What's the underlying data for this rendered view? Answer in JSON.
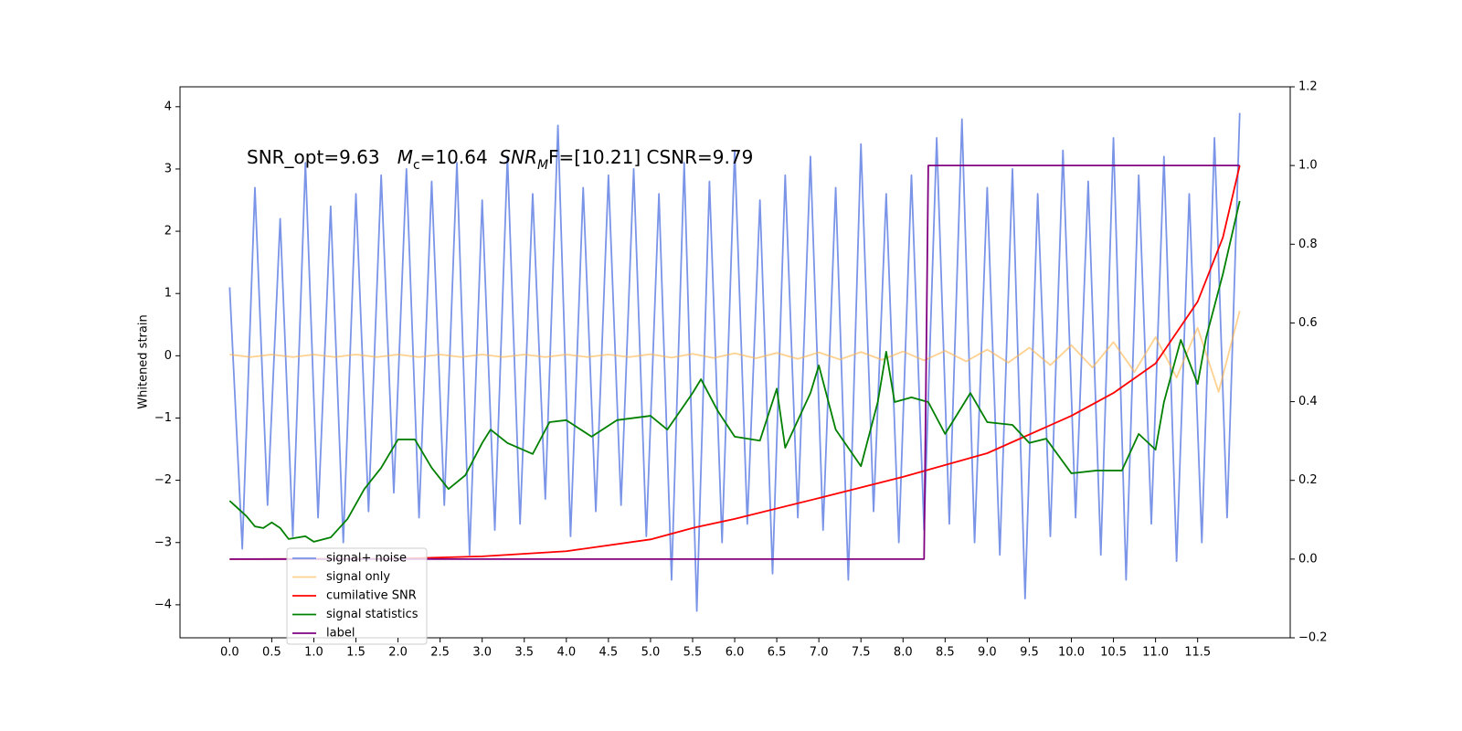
{
  "chart_data": {
    "type": "line",
    "ylabel": "Whitened strain",
    "annotation": [
      "SNR_opt=9.63   ",
      "M",
      "c",
      "=10.64  ",
      "SNR",
      "M",
      "F=[10.21] CSNR=9.79"
    ],
    "xlim": [
      -0.59,
      12.6
    ],
    "xticks": [
      {
        "value": 0,
        "label": "0.0"
      },
      0.5,
      {
        "value": 1,
        "label": "1.0"
      },
      1.5,
      {
        "value": 2,
        "label": "2.0"
      },
      2.5,
      {
        "value": 3,
        "label": "3.0"
      },
      3.5,
      {
        "value": 4,
        "label": "4.0"
      },
      4.5,
      {
        "value": 5,
        "label": "5.0"
      },
      5.5,
      {
        "value": 6,
        "label": "6.0"
      },
      6.5,
      {
        "value": 7,
        "label": "7.0"
      },
      7.5,
      {
        "value": 8,
        "label": "8.0"
      },
      8.5,
      {
        "value": 9,
        "label": "9.0"
      },
      9.5,
      {
        "value": 10,
        "label": "10.0"
      },
      10.5,
      {
        "value": 11,
        "label": "11.0"
      },
      11.5
    ],
    "ylim": [
      -4.53,
      4.32
    ],
    "yticks": [
      {
        "value": -4,
        "label": "−4"
      },
      {
        "value": -3,
        "label": "−3"
      },
      {
        "value": -2,
        "label": "−2"
      },
      {
        "value": -1,
        "label": "−1"
      },
      0,
      1,
      2,
      3,
      4
    ],
    "y2lim": [
      -0.2,
      1.2
    ],
    "y2ticks": [
      {
        "value": -0.2,
        "label": "−0.2"
      },
      {
        "value": 0,
        "label": "0.0"
      },
      0.2,
      0.4,
      0.6,
      0.8,
      {
        "value": 1,
        "label": "1.0"
      },
      1.2
    ],
    "series": [
      {
        "name": "signal+ noise",
        "color": "#7a94e8",
        "x": [
          0,
          0.15,
          0.3,
          0.45,
          0.6,
          0.75,
          0.9,
          1.05,
          1.2,
          1.35,
          1.5,
          1.65,
          1.8,
          1.95,
          2.1,
          2.25,
          2.4,
          2.55,
          2.7,
          2.85,
          3,
          3.15,
          3.3,
          3.45,
          3.6,
          3.75,
          3.9,
          4.05,
          4.2,
          4.35,
          4.5,
          4.65,
          4.8,
          4.95,
          5.1,
          5.25,
          5.4,
          5.55,
          5.7,
          5.85,
          6,
          6.15,
          6.3,
          6.45,
          6.6,
          6.75,
          6.9,
          7.05,
          7.2,
          7.35,
          7.5,
          7.65,
          7.8,
          7.95,
          8.1,
          8.25,
          8.4,
          8.55,
          8.7,
          8.85,
          9,
          9.15,
          9.3,
          9.45,
          9.6,
          9.75,
          9.9,
          10.05,
          10.2,
          10.35,
          10.5,
          10.65,
          10.8,
          10.95,
          11.1,
          11.25,
          11.4,
          11.55,
          11.7,
          11.85,
          12
        ],
        "values": [
          1.1,
          -3.1,
          2.7,
          -2.4,
          2.2,
          -2.9,
          3.1,
          -2.6,
          2.4,
          -3.0,
          2.6,
          -2.5,
          2.9,
          -2.2,
          3.0,
          -2.6,
          2.8,
          -2.4,
          3.1,
          -3.2,
          2.5,
          -2.8,
          3.2,
          -2.7,
          2.6,
          -2.3,
          3.7,
          -2.9,
          2.7,
          -2.5,
          2.9,
          -2.4,
          3.0,
          -2.9,
          2.6,
          -3.6,
          3.1,
          -4.1,
          2.8,
          -3.0,
          3.3,
          -2.7,
          2.5,
          -3.5,
          2.9,
          -2.6,
          3.2,
          -2.8,
          2.7,
          -3.6,
          3.4,
          -2.5,
          2.6,
          -3.0,
          2.9,
          -2.8,
          3.5,
          -2.7,
          3.8,
          -3.0,
          2.7,
          -3.2,
          3.0,
          -3.9,
          2.6,
          -2.9,
          3.3,
          -2.6,
          2.8,
          -3.2,
          3.5,
          -3.6,
          2.9,
          -2.7,
          3.2,
          -3.3,
          2.6,
          -3.0,
          3.5,
          -2.6,
          3.9
        ]
      },
      {
        "name": "signal only",
        "color": "#ffb347",
        "x": [
          0,
          0.25,
          0.5,
          0.75,
          1,
          1.25,
          1.5,
          1.75,
          2,
          2.25,
          2.5,
          2.75,
          3,
          3.25,
          3.5,
          3.75,
          4,
          4.25,
          4.5,
          4.75,
          5,
          5.25,
          5.5,
          5.75,
          6,
          6.25,
          6.5,
          6.75,
          7,
          7.25,
          7.5,
          7.75,
          8,
          8.25,
          8.5,
          8.75,
          9,
          9.25,
          9.5,
          9.75,
          10,
          10.25,
          10.5,
          10.75,
          11,
          11.25,
          11.5,
          11.75,
          12
        ],
        "values": [
          0.02,
          -0.02,
          0.02,
          -0.02,
          0.02,
          -0.02,
          0.02,
          -0.02,
          0.02,
          -0.02,
          0.02,
          -0.02,
          0.02,
          -0.02,
          0.02,
          -0.02,
          0.02,
          -0.02,
          0.02,
          -0.02,
          0.025,
          -0.03,
          0.03,
          -0.035,
          0.04,
          -0.04,
          0.045,
          -0.05,
          0.055,
          -0.06,
          0.06,
          -0.065,
          0.07,
          -0.075,
          0.08,
          -0.09,
          0.1,
          -0.11,
          0.13,
          -0.15,
          0.17,
          -0.19,
          0.22,
          -0.26,
          0.3,
          -0.35,
          0.45,
          -0.58,
          0.72
        ]
      },
      {
        "name": "cumilative SNR",
        "color": "#ff0000",
        "axis": "y2",
        "x": [
          0,
          2,
          3,
          4,
          5,
          5.5,
          6,
          7,
          8,
          9,
          10,
          10.5,
          11,
          11.5,
          11.8,
          12
        ],
        "values": [
          0,
          0.001,
          0.007,
          0.02,
          0.05,
          0.079,
          0.102,
          0.155,
          0.209,
          0.269,
          0.364,
          0.422,
          0.497,
          0.654,
          0.817,
          1.0
        ]
      },
      {
        "name": "signal statistics",
        "color": "#008000",
        "axis": "y2",
        "x": [
          0,
          0.2,
          0.3,
          0.4,
          0.5,
          0.6,
          0.7,
          0.9,
          1.0,
          1.2,
          1.4,
          1.6,
          1.8,
          2.0,
          2.2,
          2.4,
          2.6,
          2.8,
          3.0,
          3.1,
          3.3,
          3.6,
          3.8,
          4.0,
          4.3,
          4.6,
          5.0,
          5.2,
          5.5,
          5.6,
          5.8,
          6.0,
          6.3,
          6.5,
          6.6,
          6.9,
          7.0,
          7.2,
          7.5,
          7.7,
          7.8,
          7.9,
          8.1,
          8.3,
          8.5,
          8.8,
          9.0,
          9.3,
          9.5,
          9.7,
          10.0,
          10.3,
          10.6,
          10.8,
          11.0,
          11.1,
          11.3,
          11.5,
          11.6,
          11.8,
          12.0
        ],
        "values": [
          0.148,
          0.109,
          0.083,
          0.079,
          0.093,
          0.079,
          0.051,
          0.058,
          0.044,
          0.055,
          0.102,
          0.178,
          0.232,
          0.304,
          0.304,
          0.232,
          0.178,
          0.213,
          0.295,
          0.329,
          0.295,
          0.267,
          0.348,
          0.353,
          0.311,
          0.353,
          0.364,
          0.329,
          0.422,
          0.457,
          0.376,
          0.311,
          0.301,
          0.433,
          0.283,
          0.422,
          0.492,
          0.329,
          0.236,
          0.399,
          0.527,
          0.399,
          0.411,
          0.399,
          0.318,
          0.422,
          0.348,
          0.341,
          0.295,
          0.306,
          0.218,
          0.225,
          0.225,
          0.318,
          0.278,
          0.399,
          0.557,
          0.445,
          0.562,
          0.724,
          0.91
        ]
      },
      {
        "name": "label",
        "color": "#800080",
        "axis": "y2",
        "x": [
          0,
          8.25,
          8.3,
          12
        ],
        "values": [
          0,
          0,
          1,
          1
        ]
      }
    ]
  }
}
